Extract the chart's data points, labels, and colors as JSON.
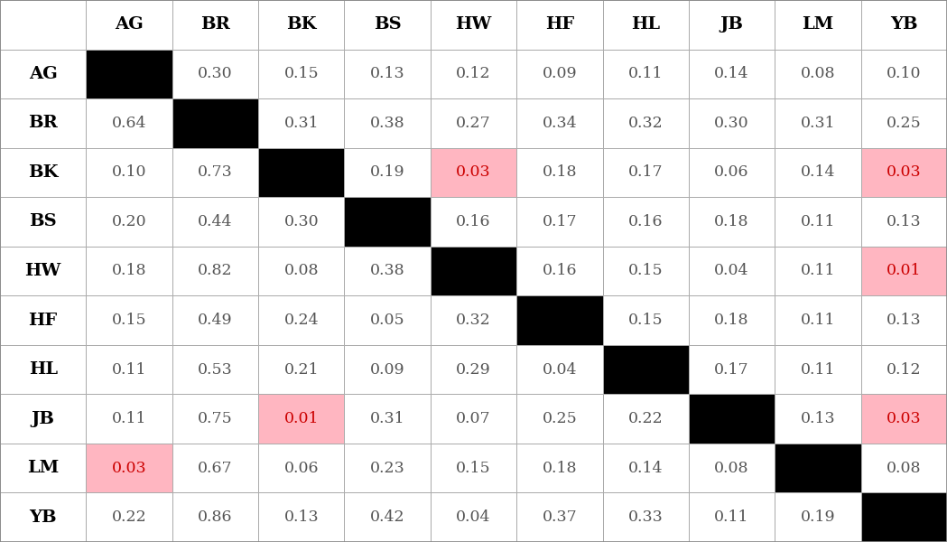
{
  "labels": [
    "AG",
    "BR",
    "BK",
    "BS",
    "HW",
    "HF",
    "HL",
    "JB",
    "LM",
    "YB"
  ],
  "matrix": [
    [
      null,
      0.3,
      0.15,
      0.13,
      0.12,
      0.09,
      0.11,
      0.14,
      0.08,
      0.1
    ],
    [
      0.64,
      null,
      0.31,
      0.38,
      0.27,
      0.34,
      0.32,
      0.3,
      0.31,
      0.25
    ],
    [
      0.1,
      0.73,
      null,
      0.19,
      0.03,
      0.18,
      0.17,
      0.06,
      0.14,
      0.03
    ],
    [
      0.2,
      0.44,
      0.3,
      null,
      0.16,
      0.17,
      0.16,
      0.18,
      0.11,
      0.13
    ],
    [
      0.18,
      0.82,
      0.08,
      0.38,
      null,
      0.16,
      0.15,
      0.04,
      0.11,
      0.01
    ],
    [
      0.15,
      0.49,
      0.24,
      0.05,
      0.32,
      null,
      0.15,
      0.18,
      0.11,
      0.13
    ],
    [
      0.11,
      0.53,
      0.21,
      0.09,
      0.29,
      0.04,
      null,
      0.17,
      0.11,
      0.12
    ],
    [
      0.11,
      0.75,
      0.01,
      0.31,
      0.07,
      0.25,
      0.22,
      null,
      0.13,
      0.03
    ],
    [
      0.03,
      0.67,
      0.06,
      0.23,
      0.15,
      0.18,
      0.14,
      0.08,
      null,
      0.08
    ],
    [
      0.22,
      0.86,
      0.13,
      0.42,
      0.04,
      0.37,
      0.33,
      0.11,
      0.19,
      null
    ]
  ],
  "highlight_threshold": 0.04,
  "highlight_color": "#ffb6c1",
  "diagonal_color": "#000000",
  "normal_bg": "#ffffff",
  "grid_color": "#aaaaaa",
  "text_color_normal": "#555555",
  "text_color_highlight": "#cc0000",
  "cell_fontsize": 12.5,
  "header_fontsize": 14,
  "fig_width": 10.49,
  "fig_height": 6.0,
  "n_cols": 11,
  "n_rows": 11
}
